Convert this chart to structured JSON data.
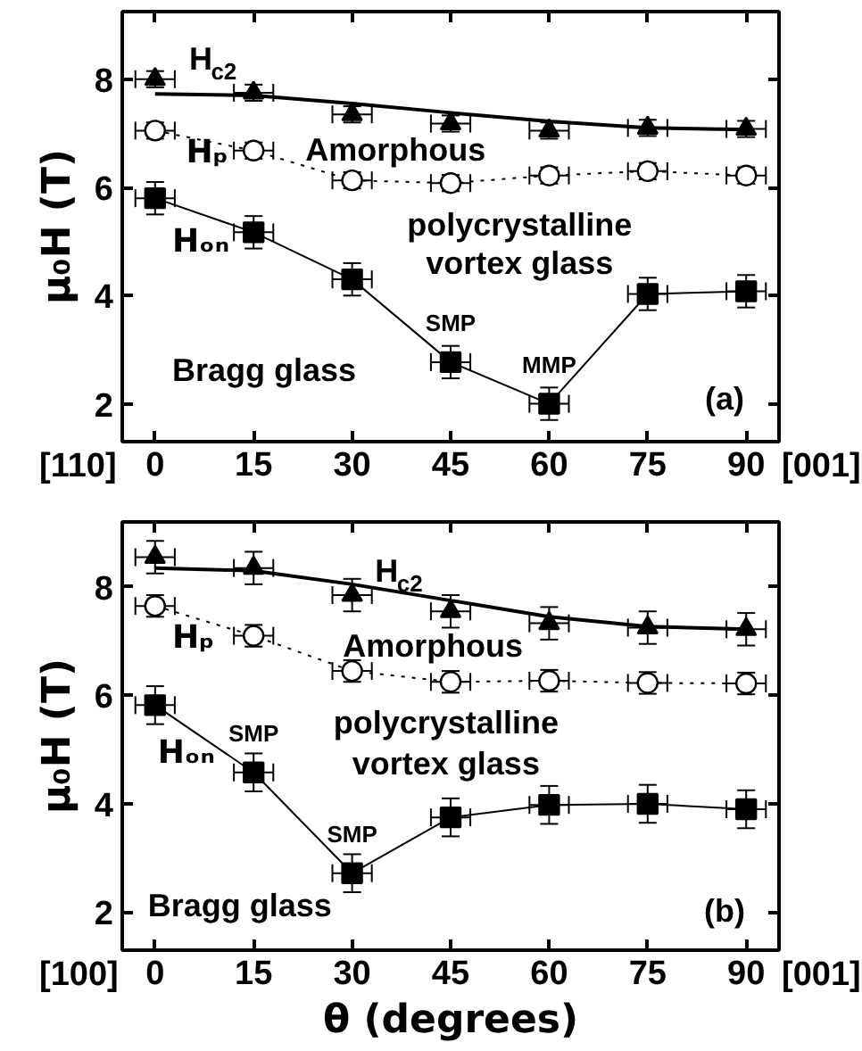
{
  "chart_data": [
    {
      "type": "scatter",
      "ylabel": "μ₀H (T)",
      "xlim": [
        -5,
        95
      ],
      "ylim": [
        1.3,
        9.25
      ],
      "xticks": [
        0,
        15,
        30,
        45,
        60,
        75,
        90
      ],
      "yticks": [
        2,
        4,
        6,
        8
      ],
      "grid": false,
      "series": [
        {
          "name": "H$_{c2}$",
          "marker": "triangle",
          "color": "#000000",
          "x": [
            0,
            15,
            30,
            45,
            60,
            75,
            90
          ],
          "values": [
            8.0,
            7.75,
            7.35,
            7.18,
            7.05,
            7.1,
            7.08
          ],
          "errors": [
            0.15,
            0.15,
            0.15,
            0.15,
            0.15,
            0.15,
            0.15
          ],
          "xerrors": [
            3,
            3,
            3,
            3,
            3,
            3,
            3
          ]
        },
        {
          "type": "line",
          "marker": "none",
          "line_style": "solid",
          "color": "#000000",
          "x": [
            0,
            15,
            30,
            45,
            60,
            75,
            90
          ],
          "values": [
            7.73,
            7.7,
            7.55,
            7.38,
            7.22,
            7.1,
            7.07
          ]
        },
        {
          "name": "Hₚ",
          "type": "line",
          "marker": "circle",
          "line_style": "dotted",
          "color": "#000000",
          "x": [
            0,
            15,
            30,
            45,
            60,
            75,
            90
          ],
          "values": [
            7.05,
            6.68,
            6.13,
            6.08,
            6.22,
            6.3,
            6.22
          ],
          "errors": [
            0.15,
            0.15,
            0.15,
            0.15,
            0.15,
            0.15,
            0.15
          ],
          "xerrors": [
            3,
            3,
            3,
            3,
            3,
            3,
            3
          ]
        },
        {
          "name": "Hₒₙ",
          "type": "line",
          "marker": "square",
          "line_style": "solid",
          "color": "#000000",
          "x": [
            0,
            15,
            30,
            45,
            60,
            75,
            90
          ],
          "values": [
            5.8,
            5.17,
            4.3,
            2.77,
            2.0,
            4.03,
            4.08
          ],
          "errors": [
            0.3,
            0.3,
            0.3,
            0.3,
            0.3,
            0.3,
            0.3
          ],
          "xerrors": [
            3,
            3,
            3,
            3,
            3,
            3,
            3
          ]
        }
      ],
      "annotations": [
        "[110]",
        "[001]",
        "Amorphous",
        "polycrystalline",
        "vortex glass",
        "Bragg glass",
        "(a)",
        {
          "text": "SMP",
          "x": 45,
          "y": 2.77
        },
        {
          "text": "MMP",
          "x": 60,
          "y": 2.0
        }
      ]
    },
    {
      "type": "scatter",
      "xlabel": "θ (degrees)",
      "ylabel": "μ₀H (T)",
      "xlim": [
        -5,
        95
      ],
      "ylim": [
        1.3,
        9.2
      ],
      "xticks": [
        0,
        15,
        30,
        45,
        60,
        75,
        90
      ],
      "yticks": [
        2,
        4,
        6,
        8
      ],
      "grid": false,
      "series": [
        {
          "name": "H$_{c2}$",
          "marker": "triangle",
          "color": "#000000",
          "x": [
            0,
            15,
            30,
            45,
            60,
            75,
            90
          ],
          "values": [
            8.55,
            8.35,
            7.85,
            7.55,
            7.33,
            7.25,
            7.22
          ],
          "errors": [
            0.3,
            0.3,
            0.3,
            0.3,
            0.3,
            0.3,
            0.3
          ],
          "xerrors": [
            3,
            3,
            3,
            3,
            3,
            3,
            3
          ]
        },
        {
          "type": "line",
          "marker": "none",
          "line_style": "solid",
          "color": "#000000",
          "x": [
            0,
            15,
            30,
            45,
            60,
            75,
            90
          ],
          "values": [
            8.35,
            8.3,
            8.05,
            7.75,
            7.45,
            7.27,
            7.22
          ]
        },
        {
          "name": "Hₚ",
          "type": "line",
          "marker": "circle",
          "line_style": "dotted",
          "color": "#000000",
          "x": [
            0,
            15,
            30,
            45,
            60,
            75,
            90
          ],
          "values": [
            7.65,
            7.1,
            6.45,
            6.25,
            6.27,
            6.23,
            6.22
          ],
          "errors": [
            0.2,
            0.2,
            0.2,
            0.2,
            0.2,
            0.2,
            0.2
          ],
          "xerrors": [
            3,
            3,
            3,
            3,
            3,
            3,
            3
          ]
        },
        {
          "name": "Hₒₙ",
          "type": "line",
          "marker": "square",
          "line_style": "solid",
          "color": "#000000",
          "x": [
            0,
            15,
            30,
            45,
            60,
            75,
            90
          ],
          "values": [
            5.82,
            4.58,
            2.72,
            3.75,
            3.98,
            4.0,
            3.9
          ],
          "errors": [
            0.35,
            0.35,
            0.35,
            0.35,
            0.35,
            0.35,
            0.35
          ],
          "xerrors": [
            3,
            3,
            3,
            3,
            3,
            3,
            3
          ]
        }
      ],
      "annotations": [
        "[100]",
        "[001]",
        "Amorphous",
        "polycrystalline",
        "vortex glass",
        "Bragg glass",
        "(b)",
        {
          "text": "SMP",
          "x": 15,
          "y": 4.58
        },
        {
          "text": "SMP",
          "x": 30,
          "y": 2.72
        }
      ]
    }
  ]
}
